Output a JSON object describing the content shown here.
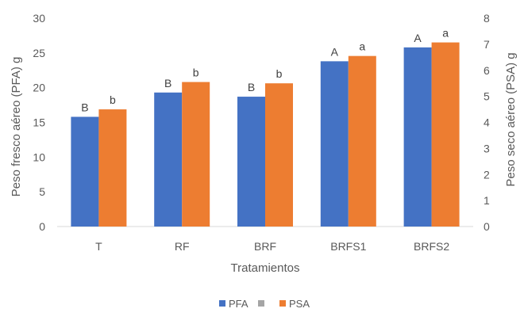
{
  "chart_data": {
    "type": "bar",
    "categories": [
      "T",
      "RF",
      "BRF",
      "BRFS1",
      "BRFS2"
    ],
    "xlabel": "Tratamientos",
    "ylabel": "Peso fresco aéreo (PFA) g",
    "y2label": "Peso seco aéreo (PSA) g",
    "ylim": [
      0,
      30
    ],
    "y2lim": [
      0,
      8
    ],
    "yticks": [
      "0",
      "5",
      "10",
      "15",
      "20",
      "25",
      "30"
    ],
    "y2ticks": [
      "0",
      "1",
      "2",
      "3",
      "4",
      "5",
      "6",
      "7",
      "8"
    ],
    "grid": false,
    "legend_position": "bottom",
    "series": [
      {
        "name": "PFA",
        "axis": "left",
        "color": "#4472C4",
        "values": [
          15.8,
          19.3,
          18.7,
          23.8,
          25.8
        ],
        "labels": [
          "B",
          "B",
          "B",
          "A",
          "A"
        ]
      },
      {
        "name": "PSA",
        "axis": "right",
        "color": "#ED7D31",
        "values": [
          4.5,
          5.55,
          5.5,
          6.55,
          7.07
        ],
        "labels": [
          "b",
          "b",
          "b",
          "a",
          "a"
        ]
      }
    ],
    "legend": [
      {
        "name": "PFA",
        "color": "#4472C4"
      },
      {
        "name": "",
        "color": "#A5A5A5"
      },
      {
        "name": "PSA",
        "color": "#ED7D31"
      }
    ]
  }
}
